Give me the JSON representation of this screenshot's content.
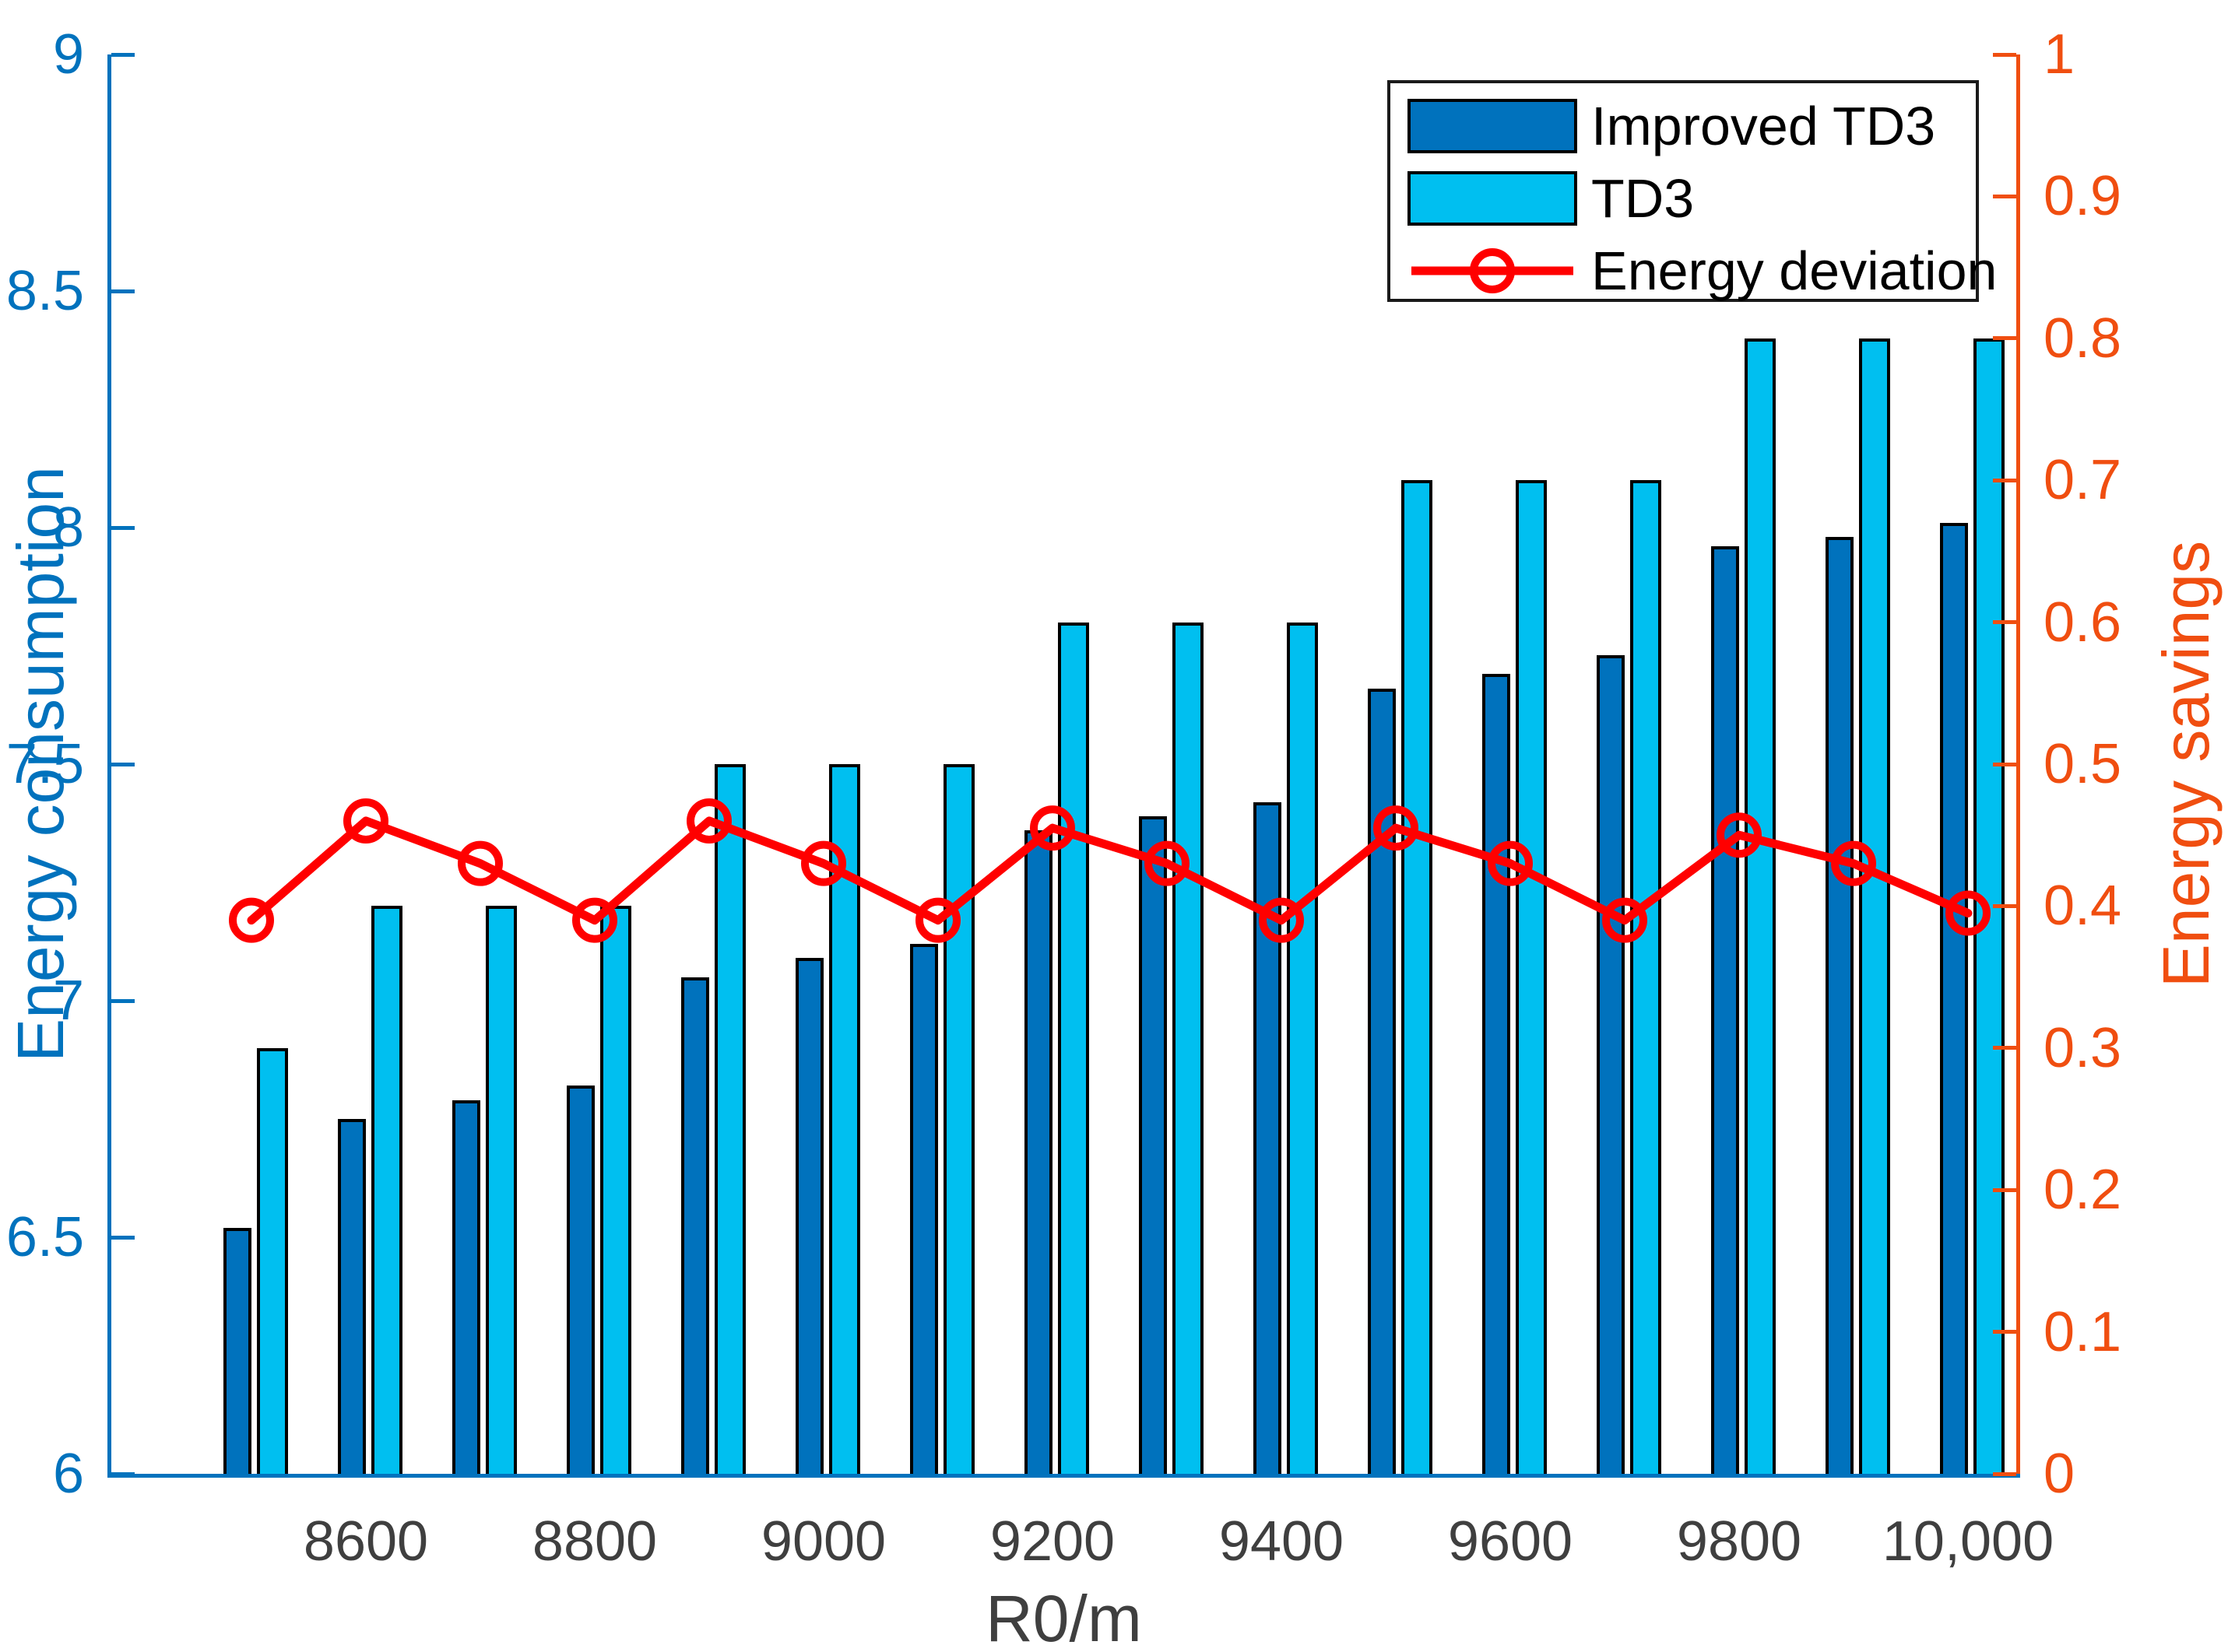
{
  "figure": {
    "xlabel": "R0/m",
    "ylabel_left": "Energy consumption",
    "ylabel_right": "Energy savings"
  },
  "chart_data": {
    "type": "bar",
    "subtype": "grouped bars with overlaid line on secondary axis",
    "x": [
      8500,
      8600,
      8700,
      8800,
      8900,
      9000,
      9100,
      9200,
      9300,
      9400,
      9500,
      9600,
      9700,
      9800,
      9900,
      10000
    ],
    "x_tick_labels": [
      "8600",
      "8800",
      "9000",
      "9200",
      "9400",
      "9600",
      "9800",
      "10,000"
    ],
    "x_tick_values": [
      8600,
      8800,
      9000,
      9200,
      9400,
      9600,
      9800,
      10000
    ],
    "xlabel": "R0/m",
    "left_axis": {
      "label": "Energy consumption",
      "range": [
        6,
        9
      ],
      "tick_labels": [
        "6",
        "6.5",
        "7",
        "7.5",
        "8",
        "8.5",
        "9"
      ],
      "color": "#0072BD"
    },
    "right_axis": {
      "label": "Energy savings",
      "range": [
        0,
        1
      ],
      "tick_labels": [
        "0",
        "0.1",
        "0.2",
        "0.3",
        "0.4",
        "0.5",
        "0.6",
        "0.7",
        "0.8",
        "0.9",
        "1"
      ],
      "color": "#F04E10"
    },
    "series": [
      {
        "name": "Improved TD3",
        "type": "bar",
        "axis": "left",
        "color": "#0072BD",
        "values": [
          6.52,
          6.75,
          6.79,
          6.82,
          7.05,
          7.09,
          7.12,
          7.36,
          7.39,
          7.42,
          7.66,
          7.69,
          7.73,
          7.96,
          7.98,
          8.01
        ]
      },
      {
        "name": "TD3",
        "type": "bar",
        "axis": "left",
        "color": "#00BFF0",
        "values": [
          6.9,
          7.2,
          7.2,
          7.2,
          7.5,
          7.5,
          7.5,
          7.8,
          7.8,
          7.8,
          8.1,
          8.1,
          8.1,
          8.4,
          8.4,
          8.4
        ]
      },
      {
        "name": "Energy deviation",
        "type": "line",
        "axis": "right",
        "color": "#FF0000",
        "marker": "open-circle",
        "values": [
          0.39,
          0.46,
          0.43,
          0.39,
          0.46,
          0.43,
          0.39,
          0.455,
          0.43,
          0.39,
          0.455,
          0.43,
          0.39,
          0.45,
          0.43,
          0.395
        ]
      }
    ],
    "grid": false,
    "legend_position": "top-right-inside",
    "bar_edge_color": "#000000"
  }
}
